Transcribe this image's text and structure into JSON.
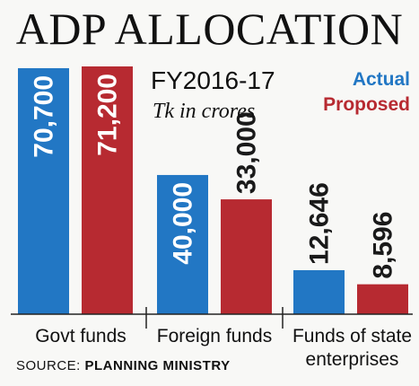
{
  "title": "ADP ALLOCATION",
  "subtitle": "FY2016-17",
  "unit_note": "Tk in crores",
  "source": {
    "prefix": "SOURCE:",
    "name": "PLANNING MINISTRY"
  },
  "colors": {
    "actual": "#2277c4",
    "proposed": "#b72a31",
    "baseline": "#222222"
  },
  "chart_data": {
    "type": "bar",
    "title": "ADP ALLOCATION",
    "subtitle": "FY2016-17",
    "ylabel": "",
    "xlabel": "",
    "ylim": [
      0,
      71200
    ],
    "legend_placement": "top-right",
    "grid": false,
    "categories": [
      "Govt funds",
      "Foreign funds",
      "Funds of state enterprises"
    ],
    "category_lines": [
      [
        "Govt funds"
      ],
      [
        "Foreign funds"
      ],
      [
        "Funds of state",
        "enterprises"
      ]
    ],
    "series": [
      {
        "name": "Actual",
        "values": [
          70700,
          40000,
          12646
        ],
        "labels": [
          "70,700",
          "40,000",
          "12,646"
        ]
      },
      {
        "name": "Proposed",
        "values": [
          71200,
          33000,
          8596
        ],
        "labels": [
          "71,200",
          "33,000",
          "8,596"
        ]
      }
    ]
  }
}
